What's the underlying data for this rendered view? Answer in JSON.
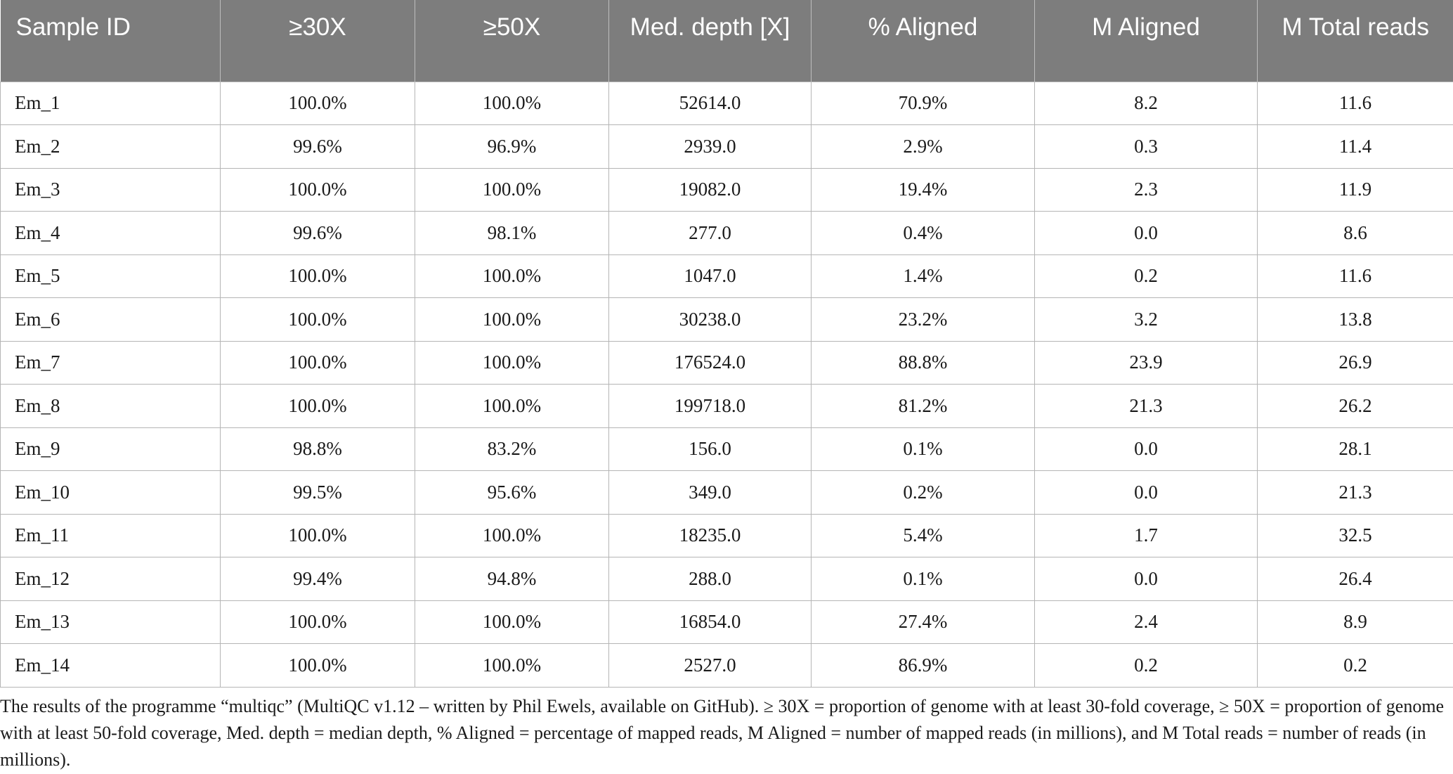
{
  "table": {
    "headers": [
      "Sample ID",
      "≥30X",
      "≥50X",
      "Med. depth [X]",
      "% Aligned",
      "M Aligned",
      "M Total reads"
    ],
    "rows": [
      [
        "Em_1",
        "100.0%",
        "100.0%",
        "52614.0",
        "70.9%",
        "8.2",
        "11.6"
      ],
      [
        "Em_2",
        "99.6%",
        "96.9%",
        "2939.0",
        "2.9%",
        "0.3",
        "11.4"
      ],
      [
        "Em_3",
        "100.0%",
        "100.0%",
        "19082.0",
        "19.4%",
        "2.3",
        "11.9"
      ],
      [
        "Em_4",
        "99.6%",
        "98.1%",
        "277.0",
        "0.4%",
        "0.0",
        "8.6"
      ],
      [
        "Em_5",
        "100.0%",
        "100.0%",
        "1047.0",
        "1.4%",
        "0.2",
        "11.6"
      ],
      [
        "Em_6",
        "100.0%",
        "100.0%",
        "30238.0",
        "23.2%",
        "3.2",
        "13.8"
      ],
      [
        "Em_7",
        "100.0%",
        "100.0%",
        "176524.0",
        "88.8%",
        "23.9",
        "26.9"
      ],
      [
        "Em_8",
        "100.0%",
        "100.0%",
        "199718.0",
        "81.2%",
        "21.3",
        "26.2"
      ],
      [
        "Em_9",
        "98.8%",
        "83.2%",
        "156.0",
        "0.1%",
        "0.0",
        "28.1"
      ],
      [
        "Em_10",
        "99.5%",
        "95.6%",
        "349.0",
        "0.2%",
        "0.0",
        "21.3"
      ],
      [
        "Em_11",
        "100.0%",
        "100.0%",
        "18235.0",
        "5.4%",
        "1.7",
        "32.5"
      ],
      [
        "Em_12",
        "99.4%",
        "94.8%",
        "288.0",
        "0.1%",
        "0.0",
        "26.4"
      ],
      [
        "Em_13",
        "100.0%",
        "100.0%",
        "16854.0",
        "27.4%",
        "2.4",
        "8.9"
      ],
      [
        "Em_14",
        "100.0%",
        "100.0%",
        "2527.0",
        "86.9%",
        "0.2",
        "0.2"
      ]
    ]
  },
  "footnote": "The results of the programme “multiqc” (MultiQC v1.12 – written by Phil Ewels, available on GitHub). ≥ 30X = proportion of genome with at least 30-fold coverage, ≥ 50X = proportion of genome with at least 50-fold coverage, Med. depth = median depth, % Aligned = percentage of mapped reads, M Aligned = number of mapped reads (in millions), and M Total reads = number of reads (in millions).",
  "colors": {
    "header_bg": "#7d7d7d",
    "header_text": "#ffffff",
    "grid": "#b5b5b5"
  }
}
